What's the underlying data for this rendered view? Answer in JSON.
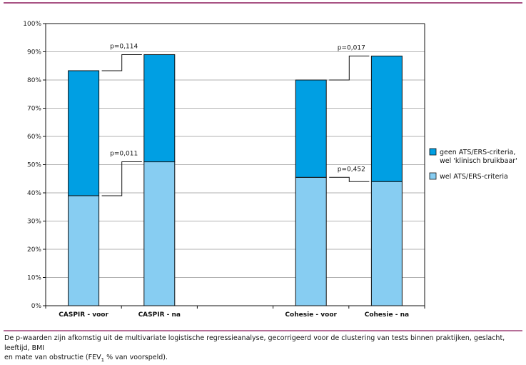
{
  "colors": {
    "accent_rule": "#8b1a5c",
    "dark_segment": "#009fe3",
    "light_segment": "#87cdf2",
    "grid": "#999999"
  },
  "chart_data": {
    "type": "bar",
    "stacked": true,
    "categories": [
      "CASPIR - voor",
      "CASPIR - na",
      "",
      "Cohesie - voor",
      "Cohesie - na"
    ],
    "series": [
      {
        "name": "wel ATS/ERS-criteria",
        "values": [
          39,
          51,
          null,
          45.5,
          44
        ]
      },
      {
        "name": "geen ATS/ERS-criteria, wel 'klinisch bruikbaar'",
        "values": [
          44.3,
          38,
          null,
          34.5,
          44.5
        ]
      }
    ],
    "ylim": [
      0,
      100
    ],
    "yticks": [
      "0%",
      "10%",
      "20%",
      "30%",
      "40%",
      "50%",
      "60%",
      "70%",
      "80%",
      "90%",
      "100%"
    ],
    "grid": true,
    "legend_placement": "right",
    "legend": [
      "geen ATS/ERS-criteria,",
      "wel 'klinisch bruikbaar'",
      "wel ATS/ERS-criteria"
    ],
    "annotations": [
      {
        "text": "p=0,114",
        "from": 0,
        "to": 1,
        "level": "total"
      },
      {
        "text": "p=0,011",
        "from": 0,
        "to": 1,
        "level": "lower"
      },
      {
        "text": "p=0,017",
        "from": 3,
        "to": 4,
        "level": "total"
      },
      {
        "text": "p=0,452",
        "from": 3,
        "to": 4,
        "level": "lower"
      }
    ]
  },
  "caption": {
    "line1": "De p-waarden zijn afkomstig uit de multivariate logistische regressieanalyse, gecorrigeerd voor de clustering van tests binnen praktijken, geslacht, leeftijd, BMI",
    "line2_pre": "en mate van obstructie (FEV",
    "line2_sub": "1",
    "line2_post": " % van voorspeld)."
  }
}
